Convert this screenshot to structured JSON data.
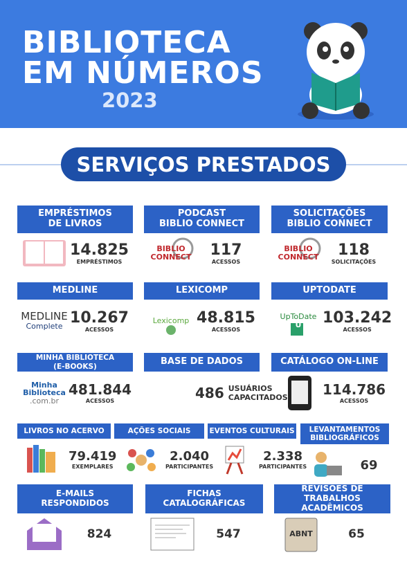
{
  "header": {
    "title": [
      "BIBLIOTECA",
      "EM NÚMEROS"
    ],
    "year": "2023"
  },
  "section_title": "SERVIÇOS PRESTADOS",
  "rows": [
    [
      {
        "title": [
          "EMPRÉSTIMOS",
          "DE LIVROS"
        ],
        "value": "14.825",
        "unit": [
          "EMPRÉSTIMOS"
        ]
      },
      {
        "title": [
          "PODCAST",
          "BIBLIO CONNECT"
        ],
        "logo": [
          "BIBLIO",
          "CONNECT"
        ],
        "value": "117",
        "unit": [
          "ACESSOS"
        ]
      },
      {
        "title": [
          "SOLICITAÇÕES",
          "BIBLIO CONNECT"
        ],
        "logo": [
          "BIBLIO",
          "CONNECT"
        ],
        "value": "118",
        "unit": [
          "SOLICITAÇÕES"
        ]
      }
    ],
    [
      {
        "title": [
          "MEDLINE"
        ],
        "logo": [
          "MEDLINE",
          "Complete"
        ],
        "value": "10.267",
        "unit": [
          "ACESSOS"
        ]
      },
      {
        "title": [
          "LEXICOMP"
        ],
        "logo": [
          "Lexicomp"
        ],
        "value": "48.815",
        "unit": [
          "ACESSOS"
        ]
      },
      {
        "title": [
          "UPTODATE"
        ],
        "logo": [
          "UpToDate",
          "U"
        ],
        "value": "103.242",
        "unit": [
          "ACESSOS"
        ]
      }
    ],
    [
      {
        "title": [
          "MINHA BIBLIOTECA",
          "(E-BOOKS)"
        ],
        "logo": [
          "Minha",
          "Biblioteca",
          ".com.br"
        ],
        "value": "481.844",
        "unit": [
          "ACESSOS"
        ]
      },
      {
        "title": [
          "BASE DE DADOS"
        ],
        "value": "486",
        "unit": [
          "USUÁRIOS",
          "CAPACITADOS"
        ]
      },
      {
        "title": [
          "CATÁLOGO ON-LINE"
        ],
        "value": "114.786",
        "unit": [
          "ACESSOS"
        ]
      }
    ],
    [
      {
        "title": [
          "LIVROS NO ACERVO"
        ],
        "value": "79.419",
        "unit": [
          "EXEMPLARES"
        ]
      },
      {
        "title": [
          "AÇÕES SOCIAIS"
        ],
        "value": "2.040",
        "unit": [
          "PARTICIPANTES"
        ]
      },
      {
        "title": [
          "EVENTOS CULTURAIS"
        ],
        "value": "2.338",
        "unit": [
          "PARTICIPANTES"
        ]
      },
      {
        "title": [
          "LEVANTAMENTOS",
          "BIBLIOGRÁFICOS"
        ],
        "value": "69"
      }
    ],
    [
      {
        "title": [
          "E-MAILS",
          "RESPONDIDOS"
        ],
        "logo": [
          "@"
        ],
        "value": "824"
      },
      {
        "title": [
          "FICHAS",
          "CATALOGRÁFICAS"
        ],
        "value": "547"
      },
      {
        "title": [
          "REVISÕES DE",
          "TRABALHOS ACADÊMICOS"
        ],
        "logo": [
          "ABNT"
        ],
        "value": "65"
      }
    ]
  ]
}
